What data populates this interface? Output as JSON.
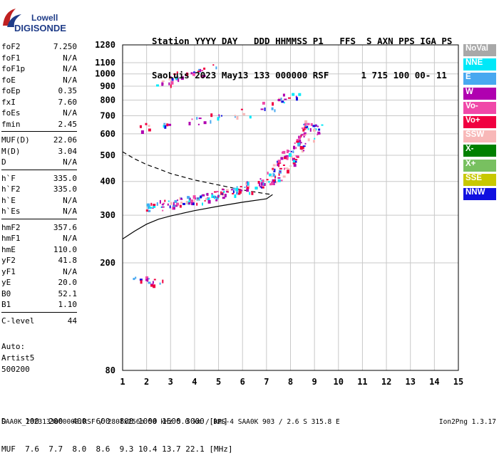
{
  "header": {
    "line1": "Station YYYY DAY   DDD HHMMSS P1   FFS  S AXN PPS IGA PS",
    "line2": "SaoLuis 2023 May13 133 000000 RSF      1 715 100 00- 11"
  },
  "logo": {
    "line1": "Lowell",
    "line2": "DIGISONDE"
  },
  "params": [
    [
      {
        "label": "foF2",
        "value": "7.250"
      },
      {
        "label": "foF1",
        "value": "N/A"
      },
      {
        "label": "foF1p",
        "value": "N/A"
      },
      {
        "label": "foE",
        "value": "N/A"
      },
      {
        "label": "foEp",
        "value": "0.35"
      },
      {
        "label": "fxI",
        "value": "7.60"
      },
      {
        "label": "foEs",
        "value": "N/A"
      },
      {
        "label": "fmin",
        "value": "2.45"
      }
    ],
    [
      {
        "label": "MUF(D)",
        "value": "22.06"
      },
      {
        "label": "M(D)",
        "value": "3.04"
      },
      {
        "label": "D",
        "value": "N/A"
      }
    ],
    [
      {
        "label": "h`F",
        "value": "335.0"
      },
      {
        "label": "h`F2",
        "value": "335.0"
      },
      {
        "label": "h`E",
        "value": "N/A"
      },
      {
        "label": "h`Es",
        "value": "N/A"
      }
    ],
    [
      {
        "label": "hmF2",
        "value": "357.6"
      },
      {
        "label": "hmF1",
        "value": "N/A"
      },
      {
        "label": "hmE",
        "value": "110.0"
      },
      {
        "label": "yF2",
        "value": "41.8"
      },
      {
        "label": "yF1",
        "value": "N/A"
      },
      {
        "label": "yE",
        "value": "20.0"
      },
      {
        "label": "B0",
        "value": "52.1"
      },
      {
        "label": "B1",
        "value": "1.10"
      }
    ],
    [
      {
        "label": "C-level",
        "value": "44"
      }
    ]
  ],
  "auto": {
    "line1": "Auto:",
    "line2": "Artist5",
    "line3": "500200"
  },
  "legend": [
    {
      "label": "NoVal",
      "color": "#a8a8a8"
    },
    {
      "label": "NNE",
      "color": "#00e8f8"
    },
    {
      "label": "E",
      "color": "#48a8f0"
    },
    {
      "label": "W",
      "color": "#b000b0"
    },
    {
      "label": "Vo-",
      "color": "#f048a8"
    },
    {
      "label": "Vo+",
      "color": "#f00040"
    },
    {
      "label": "SSW",
      "color": "#f8b8b8"
    },
    {
      "label": "X-",
      "color": "#008000"
    },
    {
      "label": "X+",
      "color": "#78c060"
    },
    {
      "label": "SSE",
      "color": "#c8c800"
    },
    {
      "label": "NNW",
      "color": "#1010e0"
    }
  ],
  "muf_table": {
    "line1": "D    100  200  400  600  800 1000 1500 3000 [km]",
    "line2": "MUF  7.6  7.7  8.0  8.6  9.3 10.4 13.7 22.1 [MHz]"
  },
  "footer": {
    "left": "SAA0K_2023133000000.RSF / 280fx256h 50 kHz 5.0 km / DPS-4 SAA0K 903 / 2.6 S 315.8 E",
    "right": "Ion2Png 1.3.17"
  },
  "chart_data": {
    "type": "scatter",
    "x_ticks": [
      1,
      2,
      3,
      4,
      5,
      6,
      7,
      8,
      9,
      10,
      11,
      12,
      13,
      14,
      15
    ],
    "y_ticks": [
      80,
      200,
      300,
      400,
      500,
      600,
      700,
      800,
      900,
      1000,
      1100,
      1280
    ],
    "xlim": [
      1,
      15
    ],
    "y_scale": "log",
    "ylim": [
      80,
      1280
    ],
    "grid": true,
    "series": [
      {
        "points": [
          [
            2.3,
            325
          ],
          [
            2.8,
            330
          ],
          [
            3.5,
            338
          ],
          [
            4.0,
            345
          ],
          [
            4.5,
            352
          ],
          [
            5.0,
            358
          ],
          [
            5.5,
            368
          ],
          [
            6.0,
            378
          ],
          [
            6.5,
            390
          ],
          [
            7.0,
            405
          ],
          [
            7.3,
            420
          ],
          [
            7.6,
            450
          ],
          [
            7.8,
            480
          ],
          [
            8.0,
            510
          ],
          [
            8.3,
            540
          ],
          [
            8.6,
            580
          ],
          [
            8.8,
            620
          ],
          [
            8.9,
            650
          ]
        ]
      },
      {
        "points": [
          [
            2.0,
            640
          ],
          [
            3.0,
            655
          ],
          [
            4.0,
            670
          ],
          [
            5.0,
            690
          ],
          [
            6.0,
            720
          ],
          [
            7.0,
            760
          ],
          [
            7.5,
            790
          ],
          [
            8.0,
            820
          ]
        ]
      },
      {
        "points": [
          [
            2.7,
            940
          ],
          [
            3.0,
            960
          ],
          [
            3.5,
            990
          ],
          [
            4.0,
            1020
          ],
          [
            4.5,
            1050
          ]
        ]
      },
      {
        "points": [
          [
            1.8,
            172
          ],
          [
            2.0,
            170
          ],
          [
            2.3,
            172
          ]
        ]
      }
    ],
    "profile": {
      "points": [
        [
          1.0,
          245
        ],
        [
          1.5,
          262
        ],
        [
          2.0,
          278
        ],
        [
          2.5,
          290
        ],
        [
          3.0,
          298
        ],
        [
          4.0,
          312
        ],
        [
          5.0,
          324
        ],
        [
          6.0,
          335
        ],
        [
          7.0,
          345
        ],
        [
          7.25,
          357.6
        ]
      ]
    },
    "dashed_profile": {
      "points": [
        [
          1.0,
          515
        ],
        [
          1.5,
          485
        ],
        [
          2.0,
          462
        ],
        [
          2.5,
          445
        ],
        [
          3.0,
          428
        ],
        [
          4.0,
          405
        ],
        [
          5.0,
          388
        ],
        [
          6.0,
          372
        ],
        [
          7.0,
          360
        ],
        [
          7.25,
          357.6
        ]
      ]
    }
  }
}
